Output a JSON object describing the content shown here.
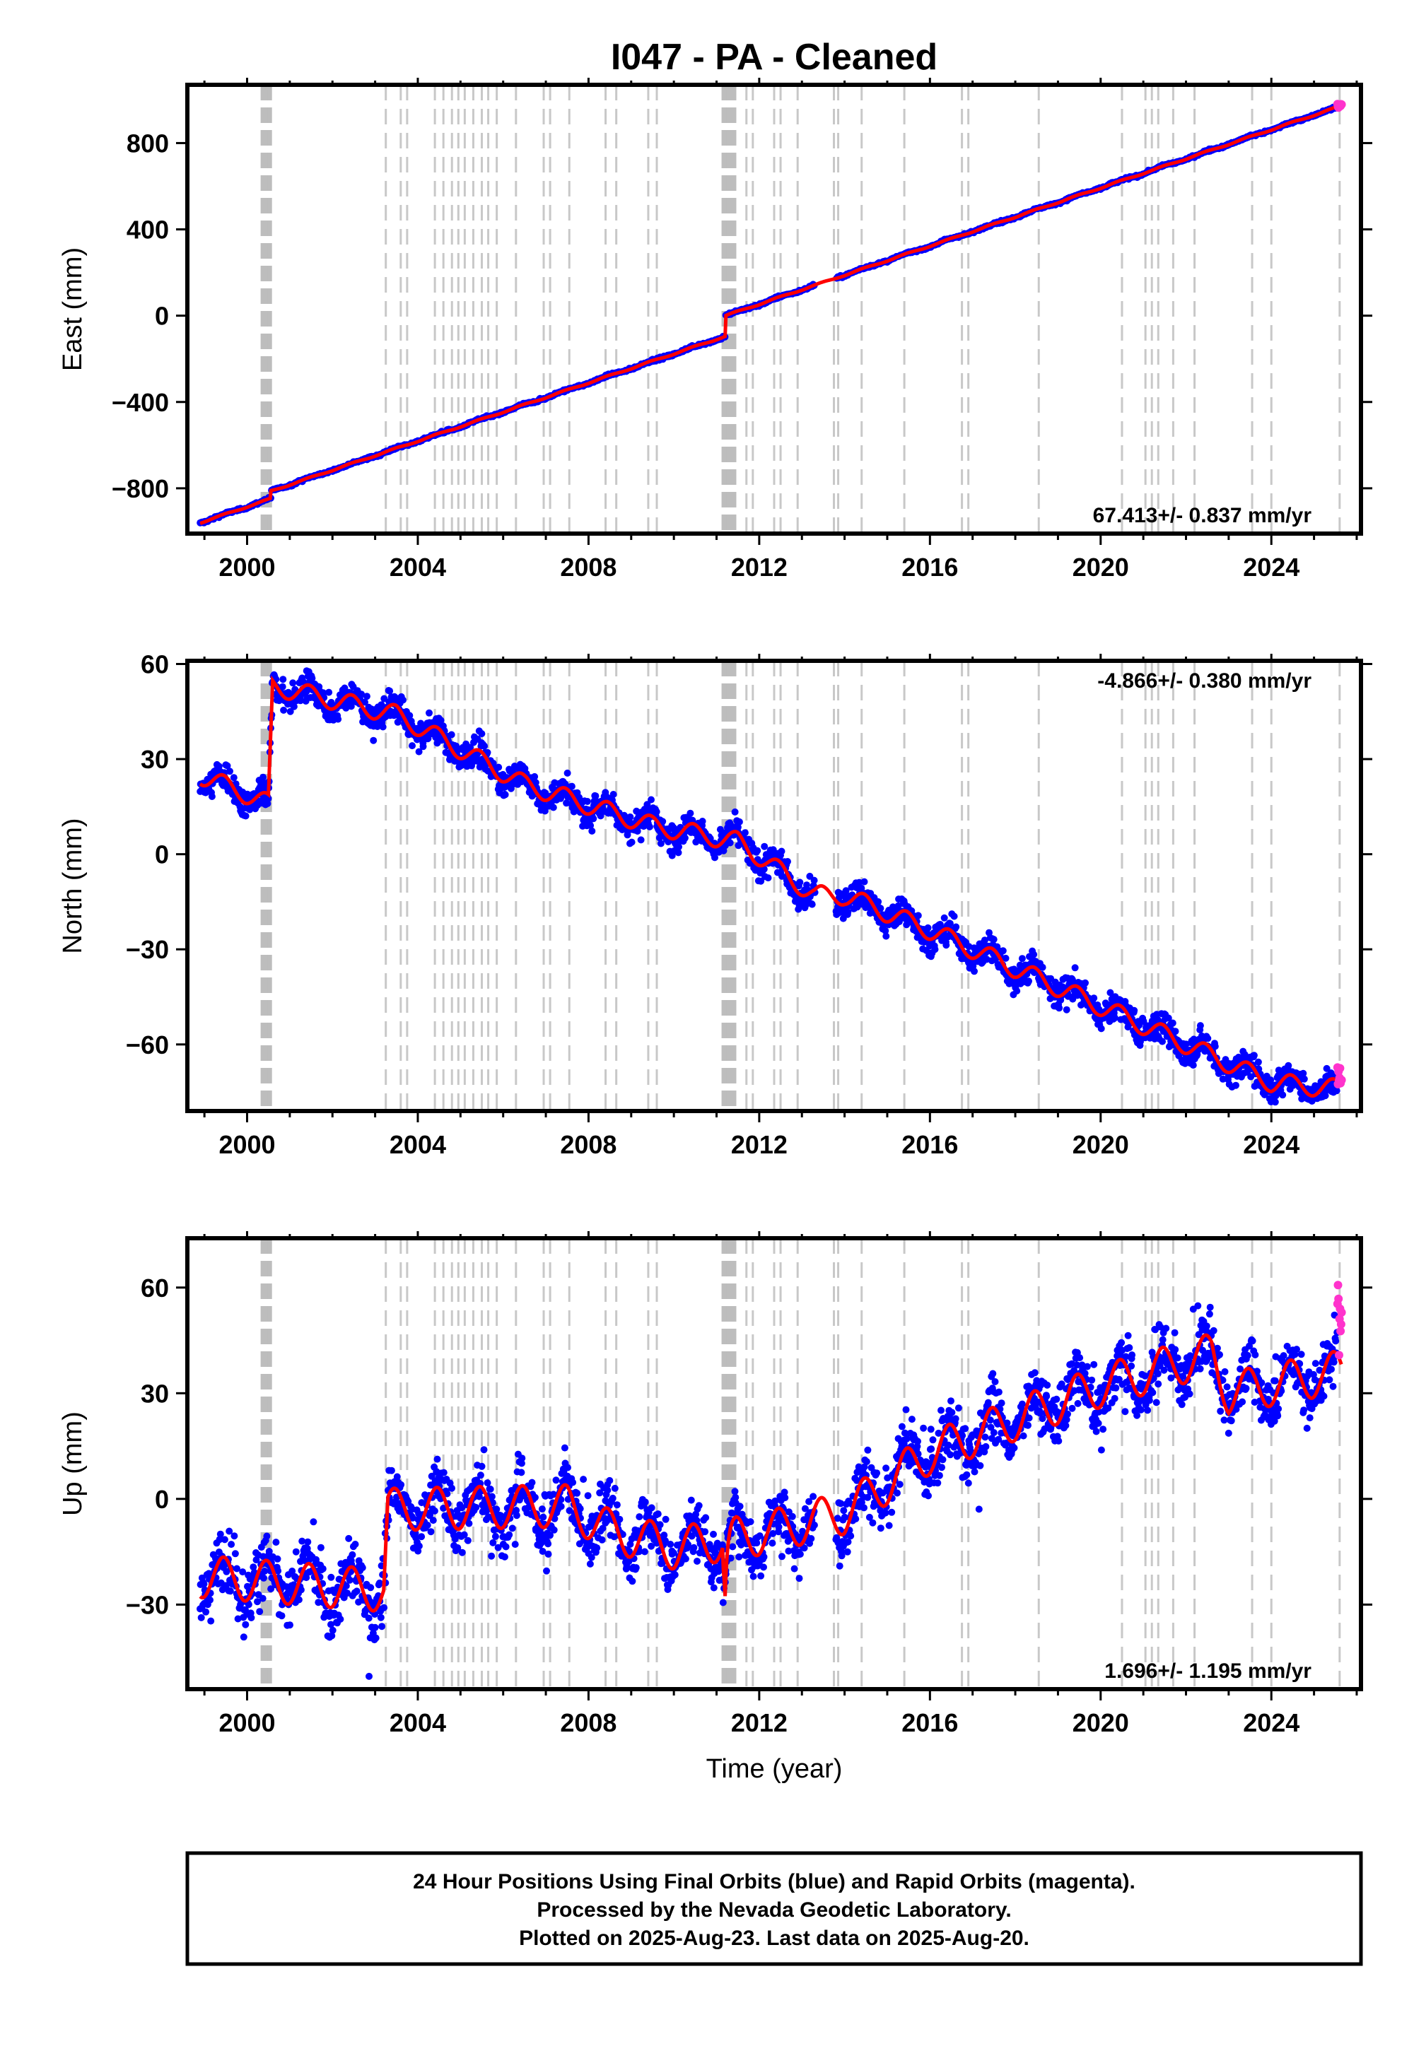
{
  "title": "I047  - PA - Cleaned",
  "xlabel": "Time (year)",
  "footer": [
    "24 Hour Positions Using Final Orbits (blue) and Rapid Orbits (magenta).",
    "Processed by the Nevada Geodetic Laboratory.",
    "Plotted on 2025-Aug-23. Last data on 2025-Aug-20."
  ],
  "colors": {
    "final": "#0000ff",
    "rapid": "#ff33cc",
    "model": "#ff0000",
    "steps_dense": "#bdbdbd",
    "steps": "#c8c8c8"
  },
  "chart_data": [
    {
      "type": "scatter",
      "panel": "East",
      "ylabel": "East (mm)",
      "rate_label": "67.413+/- 0.837 mm/yr",
      "xlim": [
        1998.6,
        2026.1
      ],
      "ylim": [
        -1010,
        1070
      ],
      "xticks": [
        2000,
        2004,
        2008,
        2012,
        2016,
        2020,
        2024
      ],
      "xtick_labels": [
        "2000",
        "2004",
        "2008",
        "2012",
        "2016",
        "2020",
        "2024"
      ],
      "yticks": [
        -800,
        -400,
        0,
        400,
        800
      ],
      "ytick_labels": [
        "−800",
        "−400",
        "0",
        "400",
        "800"
      ],
      "series": [
        {
          "name": "Final Orbits",
          "data_start": 1998.9,
          "data_end": 2025.55,
          "gap": [
            2013.3,
            2013.8
          ],
          "trend": {
            "at_1998_9": -960,
            "rate_mm_per_yr": 67.413
          },
          "offsets": [
            {
              "year": 2000.55,
              "mm": 35
            },
            {
              "year": 2011.2,
              "mm": 95
            }
          ],
          "seasonal_amp": 3,
          "noise": 4
        },
        {
          "name": "Rapid Orbits",
          "start": 2025.55,
          "end": 2025.65
        }
      ]
    },
    {
      "type": "scatter",
      "panel": "North",
      "ylabel": "North (mm)",
      "rate_label": "-4.866+/- 0.380 mm/yr",
      "xlim": [
        1998.6,
        2026.1
      ],
      "ylim": [
        -81,
        61
      ],
      "xticks": [
        2000,
        2004,
        2008,
        2012,
        2016,
        2020,
        2024
      ],
      "xtick_labels": [
        "2000",
        "2004",
        "2008",
        "2012",
        "2016",
        "2020",
        "2024"
      ],
      "yticks": [
        -60,
        -30,
        0,
        30,
        60
      ],
      "ytick_labels": [
        "−60",
        "−30",
        "0",
        "30",
        "60"
      ],
      "series": [
        {
          "name": "Final Orbits",
          "data_start": 1998.9,
          "data_end": 2025.55,
          "gap": [
            2013.3,
            2013.8
          ],
          "points": [
            [
              1998.9,
              25
            ],
            [
              2000.5,
              16
            ],
            [
              2000.6,
              53
            ],
            [
              2003.5,
              44
            ],
            [
              2006.5,
              22
            ],
            [
              2009.5,
              9
            ],
            [
              2011.5,
              4
            ],
            [
              2013.3,
              -13
            ],
            [
              2014.0,
              -13
            ],
            [
              2016.0,
              -24
            ],
            [
              2020.5,
              -51
            ],
            [
              2024.0,
              -72
            ],
            [
              2025.55,
              -74
            ]
          ],
          "seasonal_amp": 3,
          "noise": 3.2
        },
        {
          "name": "Rapid Orbits",
          "start": 2025.55,
          "end": 2025.65
        }
      ]
    },
    {
      "type": "scatter",
      "panel": "Up",
      "ylabel": "Up (mm)",
      "rate_label": "1.696+/- 1.195 mm/yr",
      "xlim": [
        1998.6,
        2026.1
      ],
      "ylim": [
        -54,
        74
      ],
      "xticks": [
        2000,
        2004,
        2008,
        2012,
        2016,
        2020,
        2024
      ],
      "xtick_labels": [
        "2000",
        "2004",
        "2008",
        "2012",
        "2016",
        "2020",
        "2024"
      ],
      "yticks": [
        -30,
        0,
        30,
        60
      ],
      "ytick_labels": [
        "−30",
        "0",
        "30",
        "60"
      ],
      "series": [
        {
          "name": "Final Orbits",
          "data_start": 1998.9,
          "data_end": 2025.55,
          "gap": [
            2013.3,
            2013.8
          ],
          "points": [
            [
              1998.9,
              -22
            ],
            [
              2003.2,
              -26
            ],
            [
              2003.3,
              -3
            ],
            [
              2007.5,
              -2
            ],
            [
              2008.5,
              -9
            ],
            [
              2010.0,
              -14
            ],
            [
              2012.0,
              -10
            ],
            [
              2013.0,
              -7
            ],
            [
              2014.0,
              -4
            ],
            [
              2016.0,
              13
            ],
            [
              2020.0,
              32
            ],
            [
              2022.6,
              41
            ],
            [
              2023.0,
              30
            ],
            [
              2025.55,
              36
            ]
          ],
          "seasonal_amp": 6,
          "noise": 6,
          "events": [
            {
              "year": 2011.2,
              "mm": -16
            }
          ]
        },
        {
          "name": "Rapid Orbits",
          "start": 2025.55,
          "end": 2025.65
        }
      ]
    }
  ],
  "step_times": {
    "dense_bands": [
      [
        2000.35,
        2000.55
      ],
      [
        2011.15,
        2011.45
      ]
    ],
    "lines": [
      2003.25,
      2003.6,
      2003.75,
      2004.4,
      2004.6,
      2004.8,
      2004.95,
      2005.1,
      2005.3,
      2005.5,
      2005.65,
      2005.85,
      2006.3,
      2006.95,
      2007.1,
      2007.55,
      2008.4,
      2008.65,
      2009.4,
      2009.6,
      2011.7,
      2011.85,
      2012.35,
      2012.5,
      2012.9,
      2013.75,
      2013.85,
      2014.4,
      2015.4,
      2016.75,
      2016.9,
      2018.55,
      2020.5,
      2021.05,
      2021.2,
      2021.35,
      2021.7,
      2022.2,
      2023.55,
      2024.0,
      2025.6
    ]
  }
}
